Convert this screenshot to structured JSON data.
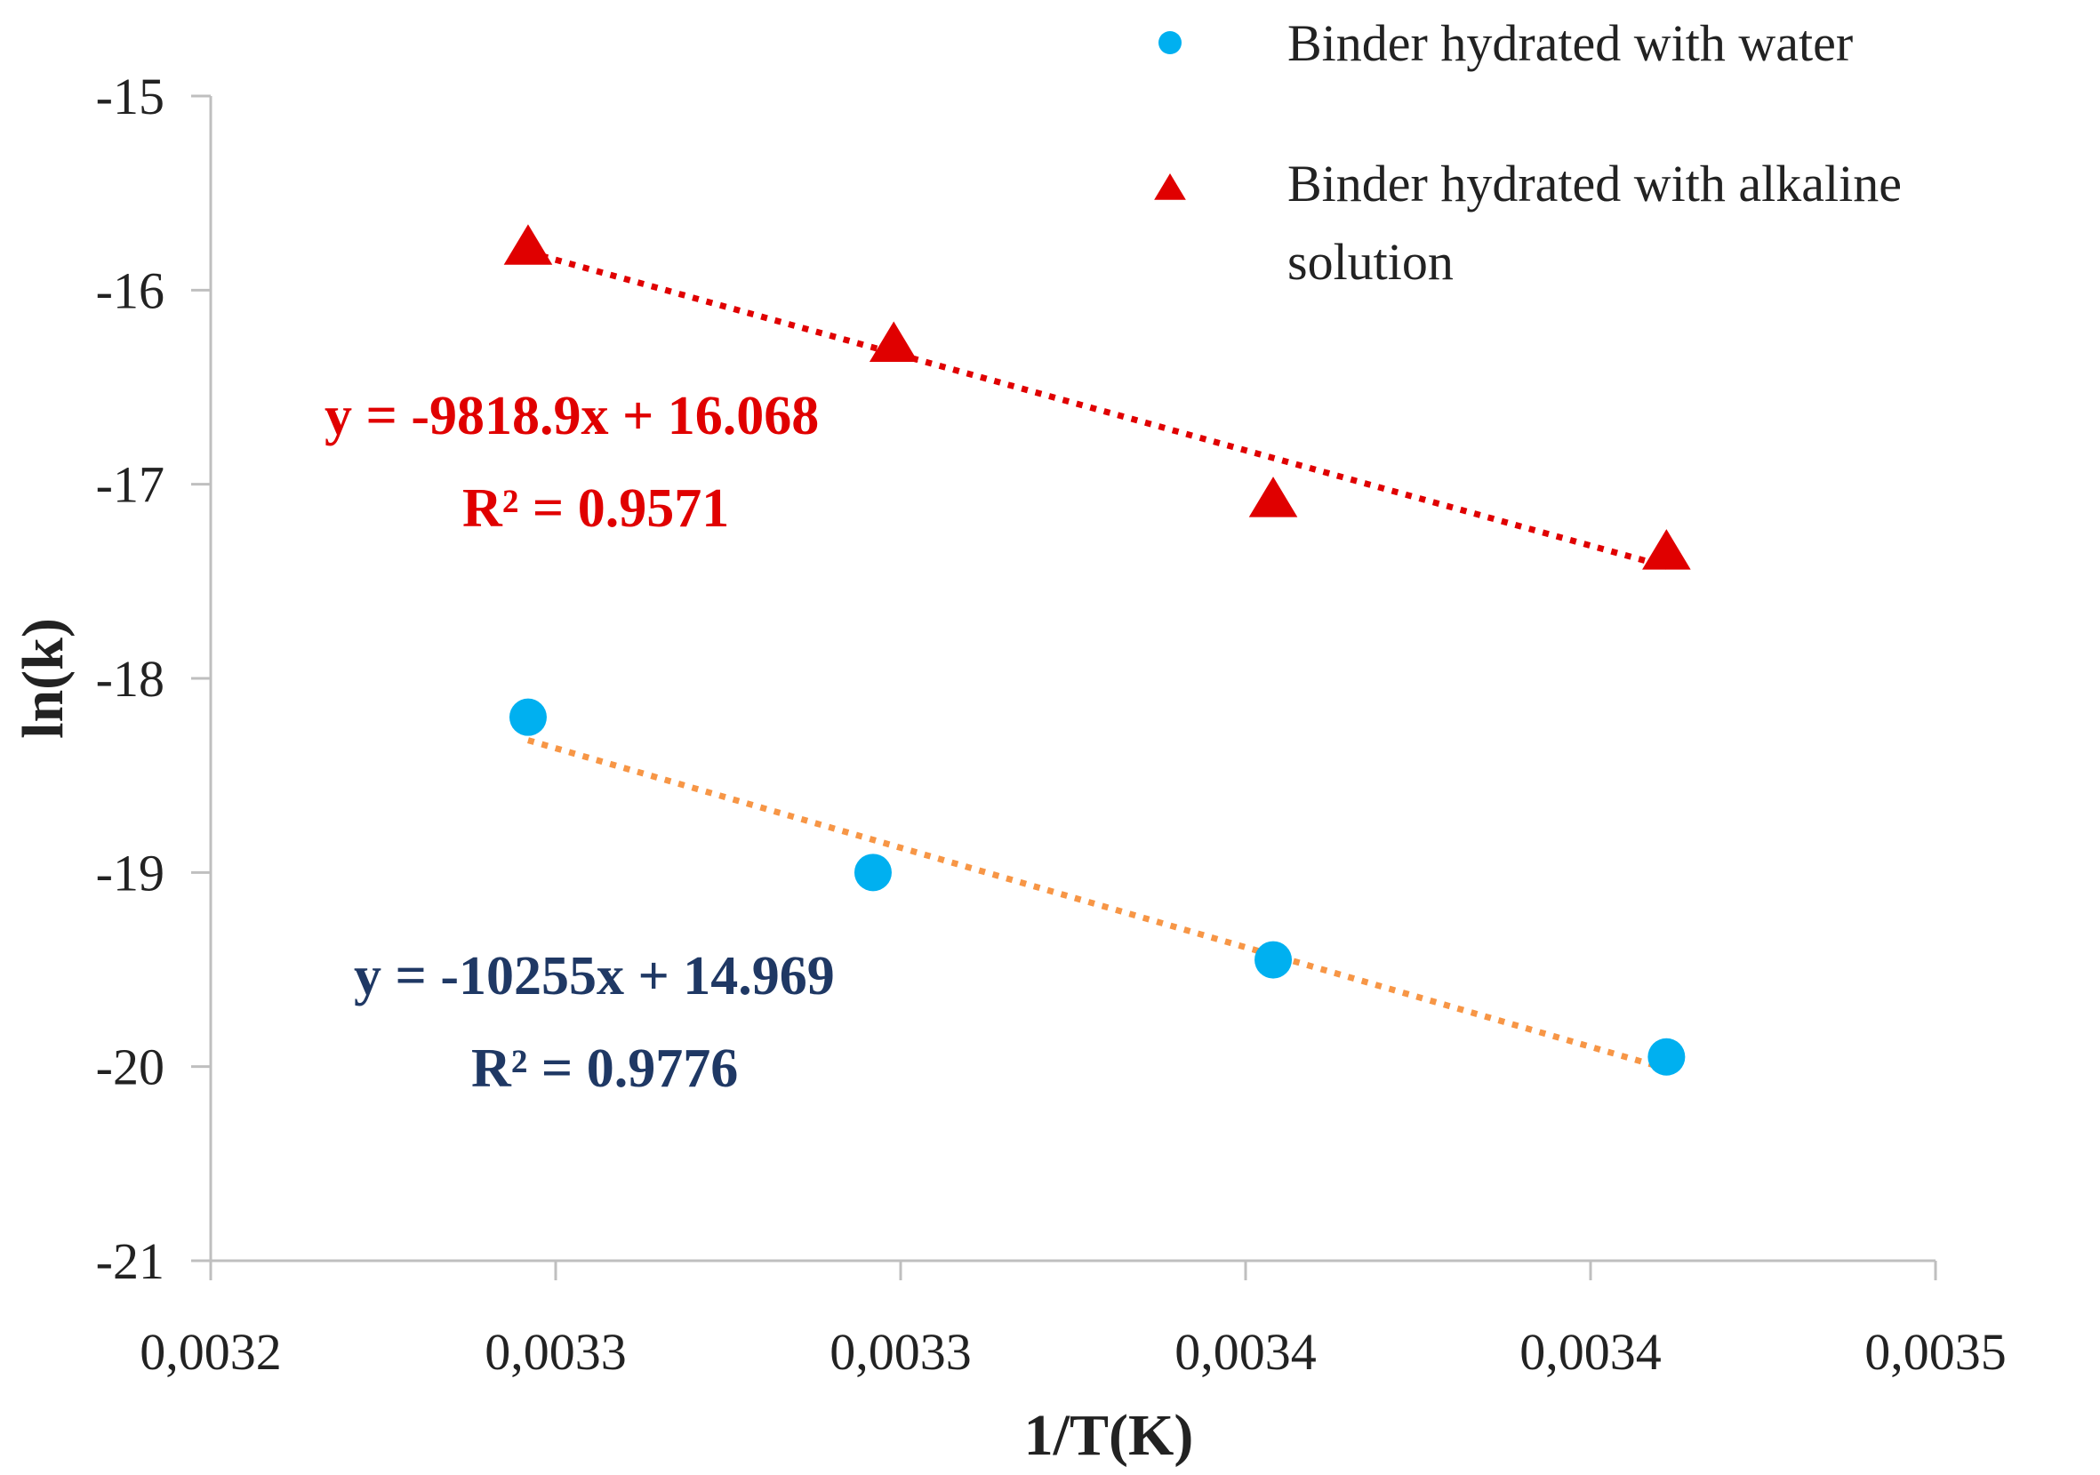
{
  "chart_data": {
    "type": "scatter",
    "title": "",
    "xlabel": "1/T(K)",
    "ylabel": "ln(k)",
    "xlim": [
      0.0032,
      0.00345
    ],
    "ylim": [
      -21,
      -15
    ],
    "x_tick_values": [
      0.0032,
      0.00325,
      0.0033,
      0.00335,
      0.0034,
      0.00345
    ],
    "x_tick_labels": [
      "0,0032",
      "0,0033",
      "0,0033",
      "0,0034",
      "0,0034",
      "0,0035"
    ],
    "y_ticks": [
      -15,
      -16,
      -17,
      -18,
      -19,
      -20,
      -21
    ],
    "y_tick_labels": [
      "-15",
      "-16",
      "-17",
      "-18",
      "-19",
      "-20",
      "-21"
    ],
    "grid": false,
    "legend_position": "top-right",
    "series": [
      {
        "name": "Binder hydrated with water",
        "marker": "circle",
        "color": "#00B0F0",
        "trendline_color": "#F79646",
        "x": [
          0.003246,
          0.003296,
          0.003354,
          0.003411
        ],
        "y": [
          -18.2,
          -19.0,
          -19.45,
          -19.95
        ],
        "trendline": {
          "slope": -10255,
          "intercept": 14.969,
          "x_range": [
            0.003246,
            0.003411
          ]
        },
        "equation": "y = -10255x + 14.969",
        "r2_label": "R² = 0.9776",
        "label_color": "#1F3864"
      },
      {
        "name": "Binder hydrated with alkaline solution",
        "name_lines": [
          "Binder hydrated with alkaline",
          "solution"
        ],
        "marker": "triangle",
        "color": "#E00000",
        "trendline_color": "#E00000",
        "x": [
          0.003246,
          0.003299,
          0.003354,
          0.003411
        ],
        "y": [
          -15.78,
          -16.28,
          -17.08,
          -17.35
        ],
        "trendline": {
          "slope": -9818.9,
          "intercept": 16.068,
          "x_range": [
            0.003246,
            0.003411
          ]
        },
        "equation": "y = -9818.9x + 16.068",
        "r2_label": "R² = 0.9571",
        "label_color": "#E00000"
      }
    ]
  }
}
